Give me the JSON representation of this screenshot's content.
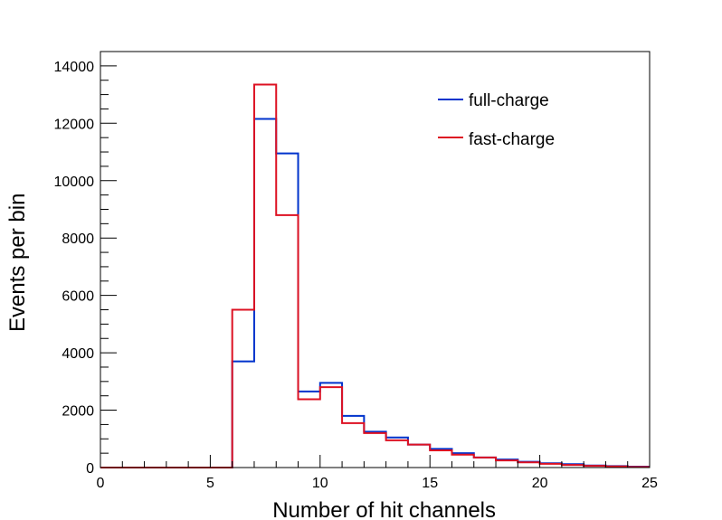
{
  "chart_data": {
    "type": "histogram",
    "title": "",
    "xlabel": "Number of hit channels",
    "ylabel": "Events per bin",
    "xlim": [
      0,
      25
    ],
    "ylim": [
      0,
      14500
    ],
    "bin_width": 1,
    "grid": false,
    "legend_placement": "top-right",
    "x_ticks": [
      "0",
      "5",
      "10",
      "15",
      "20",
      "25"
    ],
    "y_ticks": [
      "0",
      "2000",
      "4000",
      "6000",
      "8000",
      "10000",
      "12000",
      "14000"
    ],
    "bin_edges": [
      0,
      1,
      2,
      3,
      4,
      5,
      6,
      7,
      8,
      9,
      10,
      11,
      12,
      13,
      14,
      15,
      16,
      17,
      18,
      19,
      20,
      21,
      22,
      23,
      24,
      25
    ],
    "series": [
      {
        "name": "full-charge",
        "color": "#0033cc",
        "values": [
          0,
          0,
          0,
          0,
          0,
          0,
          3700,
          12150,
          10950,
          2650,
          2950,
          1800,
          1250,
          1050,
          800,
          650,
          500,
          350,
          280,
          200,
          150,
          120,
          70,
          50,
          30
        ]
      },
      {
        "name": "fast-charge",
        "color": "#dd1122",
        "values": [
          0,
          0,
          0,
          0,
          0,
          0,
          5500,
          13350,
          8800,
          2380,
          2800,
          1550,
          1200,
          950,
          800,
          600,
          450,
          350,
          250,
          180,
          130,
          90,
          60,
          40,
          20
        ]
      }
    ]
  }
}
